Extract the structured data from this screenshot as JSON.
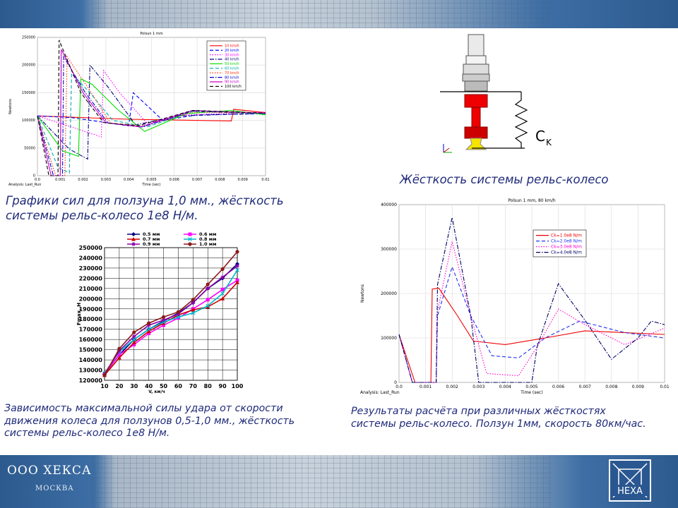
{
  "footer": {
    "company": "ООО ХЕКСА",
    "city": "МОСКВА",
    "logo_text": "HEXA"
  },
  "captions": {
    "top_left": [
      "Графики сил для ползуна 1,0 мм., жёсткость",
      "системы рельс-колесо 1е8 Н/м."
    ],
    "top_right": "Жёсткость системы рельс-колесо",
    "bottom_left": [
      "Зависимость максимальной силы удара от скорости",
      "движения колеса для ползунов 0,5-1,0 мм., жёсткость",
      "системы рельс-колесо 1е8 Н/м."
    ],
    "bottom_right": [
      "Результаты расчёта при различных жёсткостях",
      "системы рельс-колесо. Ползун 1мм, скорость 80км/час."
    ]
  },
  "diagram": {
    "stiffness_label": "C",
    "stiffness_sub": "K"
  },
  "chart_data": [
    {
      "type": "line",
      "title": "Polsun 1 mm",
      "xlabel": "Time (sec)",
      "ylabel": "Newtons",
      "analysis": "Analysis:  Last_Run",
      "xlim": [
        0,
        0.01
      ],
      "ylim": [
        0,
        250000
      ],
      "x_ticks": [
        "0.0",
        "0.001",
        "0.002",
        "0.003",
        "0.004",
        "0.005",
        "0.006",
        "0.007",
        "0.008",
        "0.009",
        "0.01"
      ],
      "y_ticks": [
        "0",
        "50000",
        "100000",
        "150000",
        "200000",
        "250000"
      ],
      "legend_position": "top-right",
      "grid": true,
      "series": [
        {
          "name": "10 km/h",
          "color": "#ff0000",
          "dash": "solid",
          "points": [
            [
              0,
              108000
            ],
            [
              0.004,
              102000
            ],
            [
              0.0085,
              99000
            ],
            [
              0.0086,
              120000
            ],
            [
              0.01,
              114000
            ]
          ]
        },
        {
          "name": "20 km/h",
          "color": "#0000ff",
          "dash": "dashed",
          "points": [
            [
              0,
              108000
            ],
            [
              0.0015,
              105000
            ],
            [
              0.004,
              90000
            ],
            [
              0.0042,
              150000
            ],
            [
              0.0055,
              100000
            ],
            [
              0.007,
              110000
            ],
            [
              0.01,
              112000
            ]
          ]
        },
        {
          "name": "30 km/h",
          "color": "#ff00ff",
          "dash": "dotted",
          "points": [
            [
              0,
              108000
            ],
            [
              0.0015,
              88000
            ],
            [
              0.0028,
              70000
            ],
            [
              0.0029,
              190000
            ],
            [
              0.0036,
              150000
            ],
            [
              0.0048,
              95000
            ],
            [
              0.0065,
              110000
            ],
            [
              0.01,
              115000
            ]
          ]
        },
        {
          "name": "40 km/h",
          "color": "#000080",
          "dash": "dashdot",
          "points": [
            [
              0,
              108000
            ],
            [
              0.0014,
              48000
            ],
            [
              0.0022,
              30000
            ],
            [
              0.0023,
              200000
            ],
            [
              0.0031,
              160000
            ],
            [
              0.0043,
              92000
            ],
            [
              0.0062,
              108000
            ],
            [
              0.01,
              113000
            ]
          ]
        },
        {
          "name": "50 km/h",
          "color": "#00dd00",
          "dash": "solid",
          "points": [
            [
              0,
              108000
            ],
            [
              0.0011,
              45000
            ],
            [
              0.0018,
              35000
            ],
            [
              0.0019,
              175000
            ],
            [
              0.0024,
              165000
            ],
            [
              0.0035,
              120000
            ],
            [
              0.0047,
              80000
            ],
            [
              0.0065,
              112000
            ],
            [
              0.0085,
              118000
            ],
            [
              0.01,
              110000
            ]
          ]
        },
        {
          "name": "60 km/h",
          "color": "#00aaaa",
          "dash": "dashed",
          "points": [
            [
              0,
              108000
            ],
            [
              0.0009,
              15000
            ],
            [
              0.0014,
              5000
            ],
            [
              0.0015,
              185000
            ],
            [
              0.0023,
              150000
            ],
            [
              0.0033,
              100000
            ],
            [
              0.0048,
              88000
            ],
            [
              0.0068,
              116000
            ],
            [
              0.01,
              112000
            ]
          ]
        },
        {
          "name": "70 km/h",
          "color": "#ff3300",
          "dash": "dotted",
          "points": [
            [
              0,
              108000
            ],
            [
              0.0008,
              0
            ],
            [
              0.0012,
              0
            ],
            [
              0.0013,
              215000
            ],
            [
              0.0022,
              160000
            ],
            [
              0.0032,
              95000
            ],
            [
              0.0047,
              90000
            ],
            [
              0.0068,
              115000
            ],
            [
              0.01,
              113000
            ]
          ]
        },
        {
          "name": "80 km/h",
          "color": "#0000cc",
          "dash": "dashdot",
          "points": [
            [
              0,
              108000
            ],
            [
              0.0007,
              0
            ],
            [
              0.0011,
              0
            ],
            [
              0.00115,
              215000
            ],
            [
              0.0021,
              150000
            ],
            [
              0.0031,
              95000
            ],
            [
              0.0046,
              88000
            ],
            [
              0.0068,
              117000
            ],
            [
              0.01,
              113000
            ]
          ]
        },
        {
          "name": "90 km/h",
          "color": "#cc00cc",
          "dash": "solid",
          "points": [
            [
              0,
              108000
            ],
            [
              0.0006,
              0
            ],
            [
              0.001,
              0
            ],
            [
              0.00105,
              228000
            ],
            [
              0.002,
              150000
            ],
            [
              0.003,
              96000
            ],
            [
              0.0045,
              88000
            ],
            [
              0.0068,
              118000
            ],
            [
              0.01,
              113000
            ]
          ]
        },
        {
          "name": "100 km/h",
          "color": "#000000",
          "dash": "dashed",
          "points": [
            [
              0,
              108000
            ],
            [
              0.0005,
              0
            ],
            [
              0.0009,
              0
            ],
            [
              0.00095,
              245000
            ],
            [
              0.0019,
              150000
            ],
            [
              0.0029,
              96000
            ],
            [
              0.0044,
              90000
            ],
            [
              0.0068,
              118000
            ],
            [
              0.01,
              113000
            ]
          ]
        }
      ]
    },
    {
      "type": "line",
      "title": "",
      "xlabel": "V, км/ч",
      "ylabel": "Fmax, H",
      "categories": [
        10,
        20,
        30,
        40,
        50,
        60,
        70,
        80,
        90,
        100
      ],
      "xlim": [
        10,
        100
      ],
      "ylim": [
        120000,
        250000
      ],
      "x_ticks": [
        "10",
        "20",
        "30",
        "40",
        "50",
        "60",
        "70",
        "80",
        "90",
        "100"
      ],
      "y_ticks": [
        "120000",
        "130000",
        "140000",
        "150000",
        "160000",
        "170000",
        "180000",
        "190000",
        "200000",
        "210000",
        "220000",
        "230000",
        "240000",
        "250000"
      ],
      "legend_position": "top",
      "grid": true,
      "series": [
        {
          "name": "0.5 мм",
          "color": "#000080",
          "marker": "diamond",
          "values": [
            126000,
            145000,
            160000,
            170000,
            178000,
            186000,
            196000,
            210000,
            220000,
            234000
          ]
        },
        {
          "name": "0.6 мм",
          "color": "#ff00ff",
          "marker": "square",
          "values": [
            126000,
            145000,
            155000,
            166000,
            174000,
            181000,
            190000,
            199000,
            209000,
            218000
          ]
        },
        {
          "name": "0.7 мм",
          "color": "#cc0000",
          "marker": "triangle",
          "values": [
            125000,
            142000,
            157000,
            168000,
            176000,
            184000,
            189000,
            192000,
            200000,
            216000
          ]
        },
        {
          "name": "0.8 мм",
          "color": "#00bbcc",
          "marker": "x",
          "values": [
            127000,
            148000,
            160000,
            170000,
            177000,
            182000,
            186000,
            193000,
            205000,
            228000
          ]
        },
        {
          "name": "0.9 мм",
          "color": "#8800aa",
          "marker": "star",
          "values": [
            126000,
            149000,
            163000,
            174000,
            179000,
            185000,
            196000,
            210000,
            221000,
            232000
          ]
        },
        {
          "name": "1.0 мм",
          "color": "#8b1a1a",
          "marker": "circle",
          "values": [
            125000,
            151000,
            167000,
            176000,
            182000,
            187000,
            199000,
            214000,
            229000,
            246000
          ]
        }
      ]
    },
    {
      "type": "line",
      "title": "Polsun 1 mm, 80 km/h",
      "xlabel": "Time (sec)",
      "ylabel": "Newtons",
      "analysis": "Analysis:  Last_Run",
      "xlim": [
        0,
        0.01
      ],
      "ylim": [
        0,
        400000
      ],
      "x_ticks": [
        "0.0",
        "0.001",
        "0.002",
        "0.003",
        "0.004",
        "0.005",
        "0.006",
        "0.007",
        "0.008",
        "0.009",
        "0.01"
      ],
      "y_ticks": [
        "0",
        "100000",
        "200000",
        "300000",
        "400000"
      ],
      "legend_position": "top-right",
      "grid": true,
      "series": [
        {
          "name": "Ck=1.0e8 N/m",
          "color": "#ee0000",
          "dash": "solid",
          "points": [
            [
              0,
              108000
            ],
            [
              0.0006,
              0
            ],
            [
              0.0012,
              0
            ],
            [
              0.00125,
              210000
            ],
            [
              0.0015,
              212000
            ],
            [
              0.0022,
              150000
            ],
            [
              0.0028,
              93000
            ],
            [
              0.004,
              85000
            ],
            [
              0.0055,
              100000
            ],
            [
              0.007,
              116000
            ],
            [
              0.01,
              108000
            ]
          ]
        },
        {
          "name": "Ck=2.0e8 N/m",
          "color": "#2233ee",
          "dash": "dashed",
          "points": [
            [
              0,
              108000
            ],
            [
              0.0005,
              0
            ],
            [
              0.0014,
              0
            ],
            [
              0.00145,
              150000
            ],
            [
              0.002,
              260000
            ],
            [
              0.0027,
              150000
            ],
            [
              0.0035,
              60000
            ],
            [
              0.0045,
              55000
            ],
            [
              0.0055,
              100000
            ],
            [
              0.0068,
              138000
            ],
            [
              0.0085,
              112000
            ],
            [
              0.01,
              100000
            ]
          ]
        },
        {
          "name": "Ck=3.0e8 N/m",
          "color": "#ff00cc",
          "dash": "dotted",
          "points": [
            [
              0,
              108000
            ],
            [
              0.0005,
              0
            ],
            [
              0.0014,
              0
            ],
            [
              0.00145,
              160000
            ],
            [
              0.002,
              317000
            ],
            [
              0.0027,
              150000
            ],
            [
              0.0033,
              20000
            ],
            [
              0.0045,
              15000
            ],
            [
              0.0052,
              80000
            ],
            [
              0.006,
              165000
            ],
            [
              0.007,
              130000
            ],
            [
              0.0085,
              85000
            ],
            [
              0.01,
              122000
            ]
          ]
        },
        {
          "name": "Ck=4.0e8 N/m",
          "color": "#000066",
          "dash": "dashdot",
          "points": [
            [
              0,
              108000
            ],
            [
              0.0005,
              0
            ],
            [
              0.0014,
              0
            ],
            [
              0.00145,
              220000
            ],
            [
              0.002,
              371000
            ],
            [
              0.0027,
              150000
            ],
            [
              0.003,
              0
            ],
            [
              0.005,
              0
            ],
            [
              0.0052,
              80000
            ],
            [
              0.006,
              222000
            ],
            [
              0.007,
              140000
            ],
            [
              0.008,
              52000
            ],
            [
              0.009,
              100000
            ],
            [
              0.0095,
              138000
            ],
            [
              0.01,
              130000
            ]
          ]
        }
      ]
    }
  ]
}
